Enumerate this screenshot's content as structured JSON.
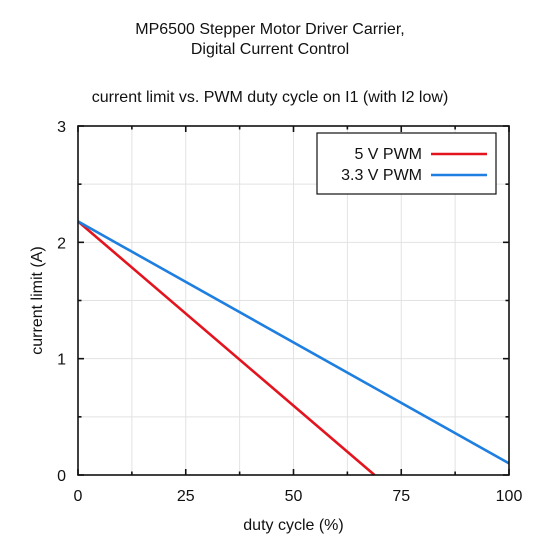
{
  "chart_data": {
    "type": "line",
    "title_lines": [
      "MP6500 Stepper Motor Driver Carrier,",
      "Digital Current Control"
    ],
    "subtitle": "current limit vs. PWM duty cycle on I1 (with I2 low)",
    "xlabel": "duty cycle (%)",
    "ylabel": "current limit (A)",
    "xlim": [
      0,
      100
    ],
    "ylim": [
      0,
      3
    ],
    "xticks": [
      "0",
      "25",
      "50",
      "75",
      "100"
    ],
    "yticks": [
      "0",
      "1",
      "2",
      "3"
    ],
    "grid": true,
    "legend_position": "top-right",
    "series": [
      {
        "name": "5 V PWM",
        "color": "#e3141e",
        "x": [
          0,
          68.8
        ],
        "y": [
          2.18,
          0
        ]
      },
      {
        "name": "3.3 V PWM",
        "color": "#1e7fe0",
        "x": [
          0,
          100
        ],
        "y": [
          2.18,
          0.1
        ]
      }
    ]
  }
}
